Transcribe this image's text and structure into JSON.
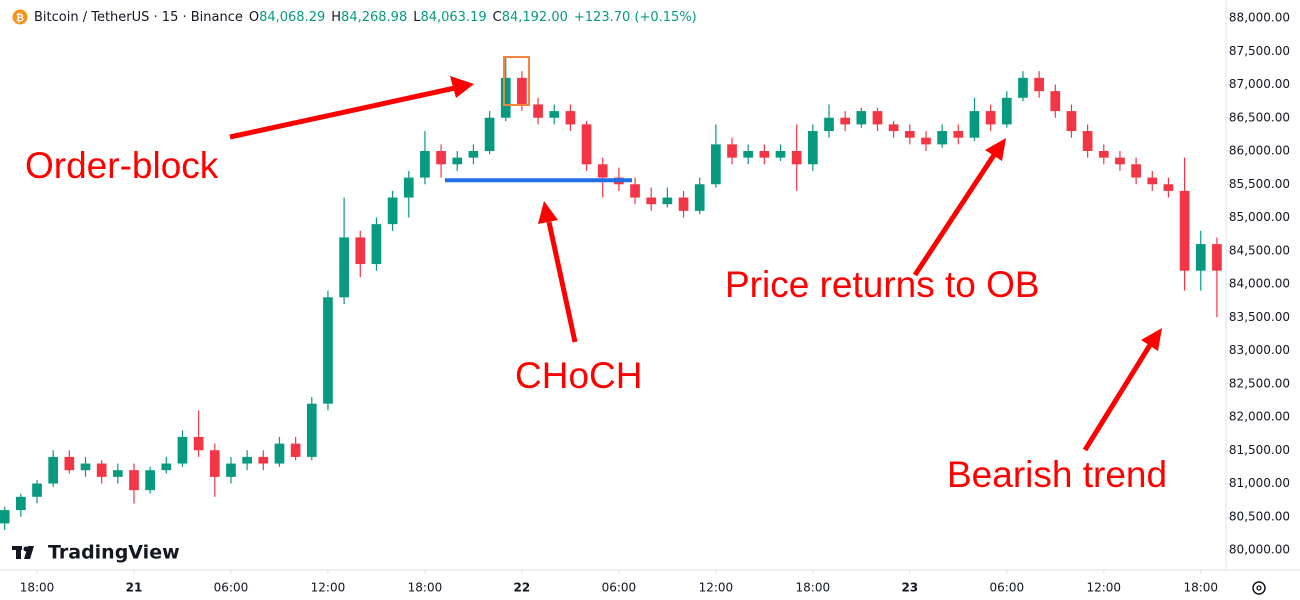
{
  "chart_data": {
    "type": "candlestick",
    "title": "Bitcoin / TetherUS · 15 · Binance",
    "legend_values": [
      {
        "label": "O",
        "value": "84,068.29"
      },
      {
        "label": "H",
        "value": "84,268.98"
      },
      {
        "label": "L",
        "value": "84,063.19"
      },
      {
        "label": "C",
        "value": "84,192.00"
      }
    ],
    "change": "+123.70 (+0.15%)",
    "watermark": "TradingView",
    "up_color": "#089981",
    "down_color": "#f23645",
    "x": [
      -2,
      -1,
      0,
      1,
      2,
      3,
      4,
      5,
      6,
      7,
      8,
      9,
      10,
      11,
      12,
      13,
      14,
      15,
      16,
      17,
      18,
      19,
      20,
      21,
      22,
      23,
      24,
      25,
      26,
      27,
      28,
      29,
      30,
      31,
      32,
      33,
      34,
      35,
      36,
      37,
      38,
      39,
      40,
      41,
      42,
      43,
      44,
      45,
      46,
      47,
      48,
      49,
      50,
      51,
      52,
      53,
      54,
      55,
      56,
      57,
      58,
      59,
      60,
      61,
      62,
      63,
      64,
      65,
      66,
      67,
      68,
      69,
      70,
      71,
      72,
      73
    ],
    "open": [
      80400,
      80600,
      80800,
      81000,
      81400,
      81200,
      81300,
      81100,
      81200,
      80900,
      81200,
      81300,
      81700,
      81500,
      81100,
      81300,
      81400,
      81300,
      81600,
      81400,
      82200,
      83800,
      84700,
      84300,
      84900,
      85300,
      85600,
      86000,
      85800,
      85900,
      86000,
      86500,
      87100,
      86700,
      86500,
      86600,
      86400,
      85800,
      85600,
      85500,
      85300,
      85200,
      85300,
      85100,
      85500,
      86100,
      85900,
      86000,
      85900,
      86000,
      85800,
      86300,
      86500,
      86400,
      86600,
      86400,
      86300,
      86200,
      86100,
      86300,
      86200,
      86600,
      86400,
      86800,
      87100,
      86900,
      86600,
      86300,
      86000,
      85900,
      85800,
      85600,
      85500,
      85400,
      84200,
      84600
    ],
    "high": [
      80650,
      80850,
      81050,
      81500,
      81500,
      81400,
      81350,
      81300,
      81300,
      81250,
      81400,
      81800,
      82100,
      81600,
      81400,
      81500,
      81500,
      81700,
      81700,
      82300,
      83900,
      85300,
      84800,
      85000,
      85400,
      85700,
      86300,
      86100,
      86000,
      86100,
      86600,
      87400,
      87200,
      86800,
      86700,
      86700,
      86450,
      85900,
      85750,
      85600,
      85450,
      85450,
      85400,
      85600,
      86400,
      86200,
      86100,
      86100,
      86100,
      86400,
      86400,
      86700,
      86600,
      86650,
      86650,
      86450,
      86400,
      86300,
      86400,
      86400,
      86800,
      86700,
      86900,
      87200,
      87200,
      87000,
      86700,
      86400,
      86100,
      86000,
      85900,
      85700,
      85600,
      85900,
      84800,
      84700
    ],
    "low": [
      80300,
      80500,
      80700,
      80950,
      81150,
      81100,
      81000,
      81000,
      80700,
      80850,
      81150,
      81250,
      81400,
      80800,
      81000,
      81200,
      81200,
      81250,
      81350,
      81350,
      82100,
      83700,
      84100,
      84200,
      84800,
      85000,
      85500,
      85600,
      85700,
      85800,
      85950,
      86450,
      86600,
      86400,
      86400,
      86300,
      85700,
      85300,
      85400,
      85200,
      85100,
      85150,
      85000,
      85050,
      85450,
      85800,
      85800,
      85800,
      85850,
      85400,
      85700,
      86200,
      86300,
      86350,
      86300,
      86200,
      86100,
      86000,
      86050,
      86100,
      86150,
      86300,
      86350,
      86750,
      86800,
      86500,
      86200,
      85900,
      85800,
      85700,
      85500,
      85400,
      85300,
      83900,
      83900,
      83500
    ],
    "close": [
      80600,
      80800,
      81000,
      81400,
      81200,
      81300,
      81100,
      81200,
      80900,
      81200,
      81300,
      81700,
      81500,
      81100,
      81300,
      81400,
      81300,
      81600,
      81400,
      82200,
      83800,
      84700,
      84300,
      84900,
      85300,
      85600,
      86000,
      85800,
      85900,
      86000,
      86500,
      87100,
      86700,
      86500,
      86600,
      86400,
      85800,
      85600,
      85500,
      85300,
      85200,
      85300,
      85100,
      85500,
      86100,
      85900,
      86000,
      85900,
      86000,
      85800,
      86300,
      86500,
      86400,
      86600,
      86400,
      86300,
      86200,
      86100,
      86300,
      86200,
      86600,
      86400,
      86800,
      87100,
      86900,
      86600,
      86300,
      86000,
      85900,
      85800,
      85600,
      85500,
      85400,
      84200,
      84600,
      84200
    ],
    "xlim": [
      -2.29,
      73.5
    ],
    "xticks": [
      {
        "value": 0,
        "label": "18:00"
      },
      {
        "value": 6,
        "label": "21"
      },
      {
        "value": 12,
        "label": "06:00"
      },
      {
        "value": 18,
        "label": "12:00"
      },
      {
        "value": 24,
        "label": "18:00"
      },
      {
        "value": 30,
        "label": "22"
      },
      {
        "value": 36,
        "label": "06:00"
      },
      {
        "value": 42,
        "label": "12:00"
      },
      {
        "value": 48,
        "label": "18:00"
      },
      {
        "value": 54,
        "label": "23"
      },
      {
        "value": 60,
        "label": "06:00"
      },
      {
        "value": 66,
        "label": "12:00"
      },
      {
        "value": 72,
        "label": "18:00"
      }
    ],
    "ylim": [
      80000,
      88000
    ],
    "yticks": [
      {
        "value": 80000,
        "label": "80,000.00"
      },
      {
        "value": 80500,
        "label": "80,500.00"
      },
      {
        "value": 81000,
        "label": "81,000.00"
      },
      {
        "value": 81500,
        "label": "81,500.00"
      },
      {
        "value": 82000,
        "label": "82,000.00"
      },
      {
        "value": 82500,
        "label": "82,500.00"
      },
      {
        "value": 83000,
        "label": "83,000.00"
      },
      {
        "value": 83500,
        "label": "83,500.00"
      },
      {
        "value": 84000,
        "label": "84,000.00"
      },
      {
        "value": 84500,
        "label": "84,500.00"
      },
      {
        "value": 85000,
        "label": "85,000.00"
      },
      {
        "value": 85500,
        "label": "85,500.00"
      },
      {
        "value": 86000,
        "label": "86,000.00"
      },
      {
        "value": 86500,
        "label": "86,500.00"
      },
      {
        "value": 87000,
        "label": "87,000.00"
      },
      {
        "value": 87500,
        "label": "87,500.00"
      },
      {
        "value": 88000,
        "label": "88,000.00"
      }
    ],
    "levels": [
      {
        "value": 85560,
        "color": "#1e6fe8"
      }
    ],
    "annotations": [
      "Order-block",
      "CHoCH",
      "Price returns to OB",
      "Bearish trend"
    ],
    "annotation_color": "#ff0000"
  }
}
